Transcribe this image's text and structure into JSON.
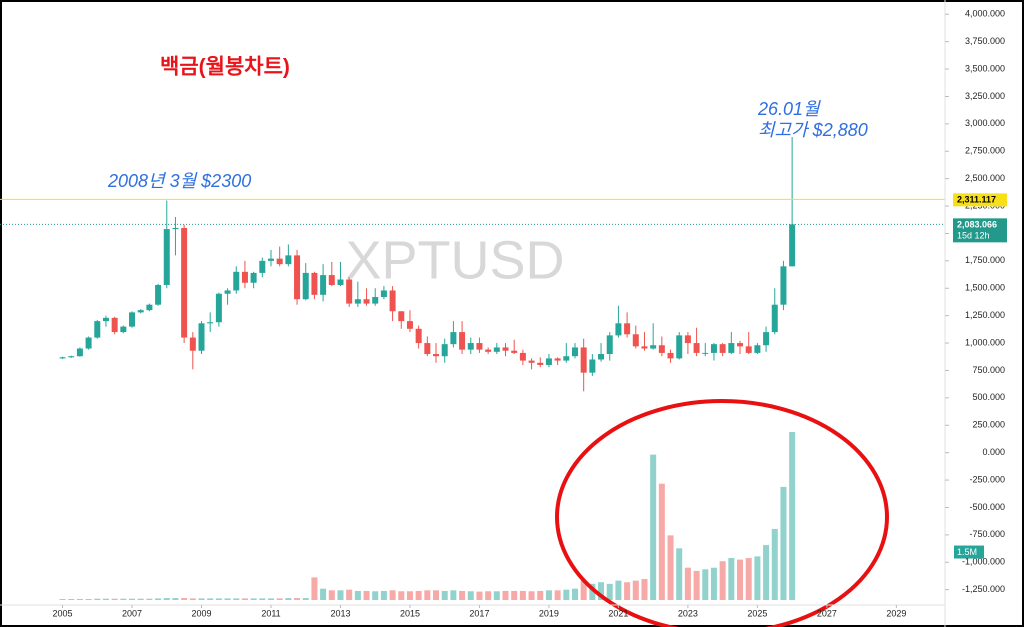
{
  "chart_data": {
    "type": "candlestick",
    "title": "백금(월봉차트)",
    "watermark": "XPTUSD",
    "annotations": [
      "2008년 3월 $2300",
      "26.01월",
      "최고가 $2,880"
    ],
    "x": [
      2005,
      2005.25,
      2005.5,
      2005.75,
      2006,
      2006.25,
      2006.5,
      2006.75,
      2007,
      2007.25,
      2007.5,
      2007.75,
      2008,
      2008.25,
      2008.5,
      2008.75,
      2009,
      2009.25,
      2009.5,
      2009.75,
      2010,
      2010.25,
      2010.5,
      2010.75,
      2011,
      2011.25,
      2011.5,
      2011.75,
      2012,
      2012.25,
      2012.5,
      2012.75,
      2013,
      2013.25,
      2013.5,
      2013.75,
      2014,
      2014.25,
      2014.5,
      2014.75,
      2015,
      2015.25,
      2015.5,
      2015.75,
      2016,
      2016.25,
      2016.5,
      2016.75,
      2017,
      2017.25,
      2017.5,
      2017.75,
      2018,
      2018.25,
      2018.5,
      2018.75,
      2019,
      2019.25,
      2019.5,
      2019.75,
      2020,
      2020.25,
      2020.5,
      2020.75,
      2021,
      2021.25,
      2021.5,
      2021.75,
      2022,
      2022.25,
      2022.5,
      2022.75,
      2023,
      2023.25,
      2023.5,
      2023.75,
      2024,
      2024.25,
      2024.5,
      2024.75,
      2025,
      2025.25,
      2025.5,
      2025.75,
      2026
    ],
    "open": [
      860,
      870,
      880,
      950,
      1050,
      1200,
      1230,
      1100,
      1150,
      1280,
      1300,
      1350,
      1530,
      2040,
      2050,
      1050,
      930,
      1180,
      1190,
      1450,
      1480,
      1650,
      1550,
      1640,
      1750,
      1770,
      1720,
      1800,
      1400,
      1640,
      1440,
      1620,
      1530,
      1580,
      1360,
      1400,
      1360,
      1420,
      1480,
      1290,
      1200,
      1130,
      1000,
      900,
      880,
      990,
      1100,
      940,
      1000,
      940,
      920,
      960,
      930,
      910,
      840,
      820,
      800,
      860,
      840,
      880,
      960,
      730,
      850,
      900,
      1070,
      1180,
      1080,
      970,
      950,
      980,
      910,
      860,
      1070,
      1000,
      910,
      910,
      990,
      910,
      1000,
      970,
      910,
      980,
      1100,
      1350,
      1700
    ],
    "high": [
      875,
      885,
      960,
      1060,
      1210,
      1250,
      1240,
      1160,
      1290,
      1310,
      1360,
      1540,
      2300,
      2150,
      2080,
      1100,
      1200,
      1280,
      1460,
      1500,
      1700,
      1750,
      1650,
      1780,
      1850,
      1880,
      1900,
      1850,
      1730,
      1650,
      1720,
      1740,
      1740,
      1600,
      1560,
      1500,
      1500,
      1520,
      1520,
      1290,
      1300,
      1160,
      1060,
      1000,
      1040,
      1200,
      1200,
      1050,
      1050,
      960,
      1000,
      1000,
      1030,
      940,
      860,
      870,
      900,
      870,
      1000,
      1000,
      1040,
      900,
      1000,
      1100,
      1340,
      1280,
      1160,
      1100,
      1180,
      1060,
      940,
      1100,
      1100,
      1140,
      1000,
      1000,
      1000,
      1100,
      1020,
      1100,
      1000,
      1150,
      1500,
      1750,
      2880
    ],
    "low": [
      855,
      865,
      875,
      940,
      1040,
      1150,
      1080,
      1090,
      1140,
      1270,
      1290,
      1340,
      1500,
      1800,
      1000,
      760,
      900,
      1100,
      1150,
      1350,
      1450,
      1500,
      1500,
      1600,
      1700,
      1700,
      1700,
      1350,
      1390,
      1400,
      1380,
      1520,
      1520,
      1330,
      1330,
      1340,
      1340,
      1400,
      1200,
      1130,
      1100,
      950,
      880,
      820,
      820,
      960,
      900,
      900,
      910,
      900,
      900,
      880,
      900,
      800,
      760,
      780,
      780,
      800,
      820,
      860,
      560,
      700,
      830,
      840,
      1050,
      1050,
      950,
      930,
      940,
      880,
      820,
      850,
      900,
      880,
      880,
      840,
      880,
      900,
      900,
      900,
      900,
      920,
      1080,
      1300,
      1700
    ],
    "close": [
      870,
      880,
      950,
      1050,
      1200,
      1230,
      1100,
      1150,
      1280,
      1300,
      1350,
      1530,
      2040,
      2050,
      1050,
      930,
      1180,
      1190,
      1450,
      1480,
      1650,
      1550,
      1640,
      1750,
      1770,
      1720,
      1800,
      1400,
      1640,
      1440,
      1620,
      1530,
      1580,
      1360,
      1400,
      1360,
      1420,
      1480,
      1290,
      1200,
      1130,
      1000,
      900,
      880,
      990,
      1100,
      940,
      1000,
      940,
      920,
      960,
      930,
      910,
      840,
      820,
      800,
      860,
      840,
      880,
      960,
      730,
      850,
      900,
      1070,
      1180,
      1080,
      970,
      950,
      980,
      910,
      860,
      1070,
      1000,
      910,
      910,
      990,
      910,
      1000,
      970,
      910,
      980,
      1100,
      1350,
      1700,
      2083.066
    ],
    "volume": [
      0.03,
      0.03,
      0.03,
      0.03,
      0.04,
      0.04,
      0.04,
      0.04,
      0.04,
      0.04,
      0.04,
      0.05,
      0.06,
      0.06,
      0.06,
      0.05,
      0.05,
      0.05,
      0.05,
      0.05,
      0.05,
      0.05,
      0.05,
      0.05,
      0.05,
      0.05,
      0.06,
      0.06,
      0.06,
      0.7,
      0.35,
      0.3,
      0.3,
      0.32,
      0.28,
      0.28,
      0.27,
      0.28,
      0.3,
      0.27,
      0.27,
      0.28,
      0.3,
      0.3,
      0.28,
      0.3,
      0.28,
      0.27,
      0.26,
      0.27,
      0.27,
      0.28,
      0.28,
      0.28,
      0.27,
      0.28,
      0.3,
      0.3,
      0.32,
      0.35,
      0.6,
      0.5,
      0.55,
      0.5,
      0.6,
      0.55,
      0.6,
      0.65,
      4.5,
      3.6,
      2.0,
      1.6,
      1.0,
      0.9,
      0.95,
      1.0,
      1.2,
      1.3,
      1.25,
      1.3,
      1.35,
      1.7,
      2.2,
      3.5,
      5.2
    ],
    "volume_marker": {
      "value": 1.5,
      "label": "1.5M"
    },
    "up_color": "#26a69a",
    "down_color": "#ef5350",
    "xlim": [
      2003.2,
      2030.4
    ],
    "xticks": [
      2005,
      2007,
      2009,
      2011,
      2013,
      2015,
      2017,
      2019,
      2021,
      2023,
      2025,
      2027,
      2029
    ],
    "ylim": [
      -1390,
      4130
    ],
    "yticks": [
      {
        "value": 4000,
        "label": "4,000.000"
      },
      {
        "value": 3750,
        "label": "3,750.000"
      },
      {
        "value": 3500,
        "label": "3,500.000"
      },
      {
        "value": 3250,
        "label": "3,250.000"
      },
      {
        "value": 3000,
        "label": "3,000.000"
      },
      {
        "value": 2750,
        "label": "2,750.000"
      },
      {
        "value": 2500,
        "label": "2,500.000"
      },
      {
        "value": 2250,
        "label": "2,250.000"
      },
      {
        "value": 2000,
        "label": "2,000.000"
      },
      {
        "value": 1750,
        "label": "1,750.000"
      },
      {
        "value": 1500,
        "label": "1,500.000"
      },
      {
        "value": 1250,
        "label": "1,250.000"
      },
      {
        "value": 1000,
        "label": "1,000.000"
      },
      {
        "value": 750,
        "label": "750.000"
      },
      {
        "value": 500,
        "label": "500.000"
      },
      {
        "value": 250,
        "label": "250.000"
      },
      {
        "value": 0,
        "label": "0.000"
      },
      {
        "value": -250,
        "label": "-250.000"
      },
      {
        "value": -500,
        "label": "-500.000"
      },
      {
        "value": -750,
        "label": "-750.000"
      },
      {
        "value": -1000,
        "label": "-1,000.000"
      },
      {
        "value": -1250,
        "label": "-1,250.000"
      }
    ],
    "price_lines": [
      {
        "value": 2311.117,
        "label": "2,311.117",
        "color": "#f7e017",
        "text_color": "#000000"
      },
      {
        "value": 2083.066,
        "label": "2,083.066",
        "sublabel": "15d 12h",
        "color": "#22998a",
        "text_color": "#ffffff"
      }
    ]
  }
}
